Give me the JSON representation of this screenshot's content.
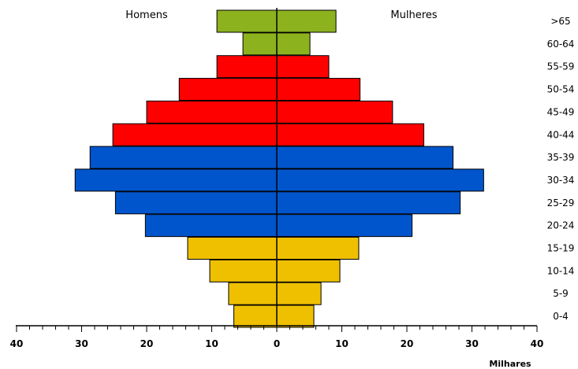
{
  "chart_data": {
    "type": "bar",
    "orientation": "horizontal-pyramid",
    "categories": [
      ">65",
      "60-64",
      "55-59",
      "50-54",
      "45-49",
      "40-44",
      "35-39",
      "30-34",
      "25-29",
      "20-24",
      "15-19",
      "10-14",
      "5-9",
      "0-4"
    ],
    "series": [
      {
        "name": "Homens",
        "values": [
          9.2,
          5.2,
          9.2,
          15.0,
          20.0,
          25.2,
          28.7,
          31.0,
          24.8,
          20.2,
          13.7,
          10.3,
          7.4,
          6.6
        ]
      },
      {
        "name": "Mulheres",
        "values": [
          9.1,
          5.1,
          8.0,
          12.8,
          17.8,
          22.6,
          27.1,
          31.8,
          28.2,
          20.8,
          12.6,
          9.7,
          6.8,
          5.7
        ]
      }
    ],
    "bar_colors": [
      "#8cb21e",
      "#8cb21e",
      "#ff0000",
      "#ff0000",
      "#ff0000",
      "#ff0000",
      "#0055cc",
      "#0055cc",
      "#0055cc",
      "#0055cc",
      "#eec000",
      "#eec000",
      "#eec000",
      "#eec000"
    ],
    "xlim": [
      -40,
      40
    ],
    "x_ticks": [
      40,
      30,
      20,
      10,
      0,
      10,
      20,
      30,
      40
    ],
    "xlabel": "Milhares",
    "legend": "none",
    "grid": false
  }
}
